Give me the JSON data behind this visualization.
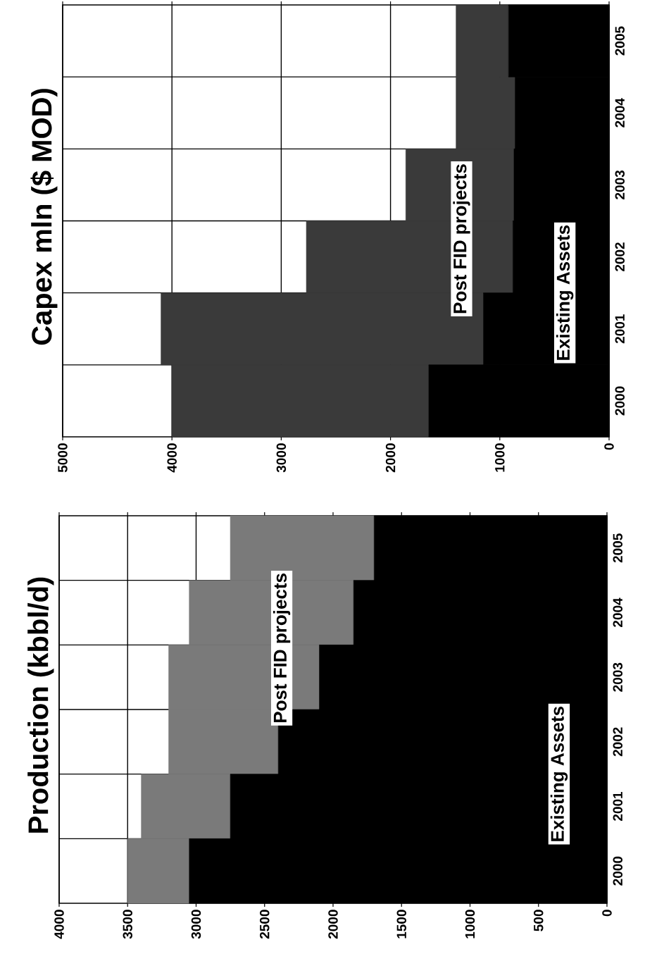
{
  "chart_data": [
    {
      "type": "bar",
      "title": "Production (kbbl/d)",
      "stacked": true,
      "orientation": "horizontal",
      "categories": [
        "2005",
        "2004",
        "2003",
        "2002",
        "2001",
        "2000"
      ],
      "series": [
        {
          "name": "Existing Assets",
          "color": "#000000",
          "values": [
            1700,
            1850,
            2100,
            2400,
            2750,
            3050
          ]
        },
        {
          "name": "Post FID projects",
          "color": "#7a7a7a",
          "values": [
            1050,
            1200,
            1100,
            800,
            650,
            450
          ]
        }
      ],
      "xlim": [
        4000,
        0
      ],
      "xticks": [
        4000,
        3500,
        3000,
        2500,
        2000,
        1500,
        1000,
        500,
        0
      ],
      "grid": true,
      "legend": false
    },
    {
      "type": "bar",
      "title": "Capex mln ($ MOD)",
      "stacked": true,
      "orientation": "horizontal",
      "categories": [
        "2005",
        "2004",
        "2003",
        "2002",
        "2001",
        "2000"
      ],
      "series": [
        {
          "name": "Existing Assets",
          "color": "#000000",
          "values": [
            920,
            860,
            870,
            880,
            1150,
            1650
          ]
        },
        {
          "name": "Post FID projects",
          "color": "#3a3a3a",
          "values": [
            480,
            540,
            990,
            1890,
            2950,
            2350
          ]
        }
      ],
      "xlim": [
        5000,
        0
      ],
      "xticks": [
        5000,
        4000,
        3000,
        2000,
        1000,
        0
      ],
      "grid": true,
      "legend": false
    }
  ]
}
